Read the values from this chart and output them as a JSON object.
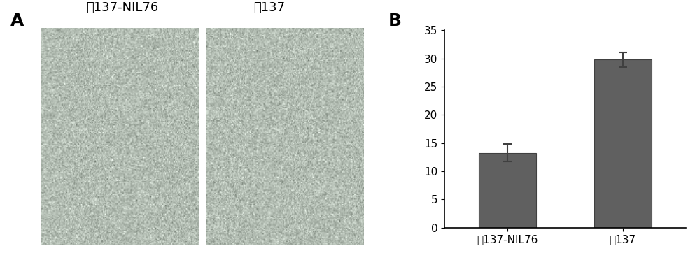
{
  "panel_b_categories": [
    "氜137-NIL76",
    "氜137"
  ],
  "panel_b_values": [
    13.3,
    29.8
  ],
  "panel_b_errors": [
    1.5,
    1.3
  ],
  "bar_color": "#606060",
  "bar_edge_color": "#404040",
  "ylim": [
    0,
    35
  ],
  "yticks": [
    0,
    5,
    10,
    15,
    20,
    25,
    30,
    35
  ],
  "label_A": "A",
  "label_B": "B",
  "label_A_fontsize": 18,
  "label_B_fontsize": 18,
  "tick_fontsize": 11,
  "panel_a_title_left": "氜137-NIL76",
  "panel_a_title_right": "氜137",
  "panel_title_fontsize": 13,
  "background_color": "#ffffff",
  "bar_width": 0.5,
  "capsize": 4,
  "ecolor": "#404040",
  "elinewidth": 1.5,
  "capthick": 1.5,
  "photo_bg_gray": 0.72,
  "photo_bg_green_tint": 0.02
}
